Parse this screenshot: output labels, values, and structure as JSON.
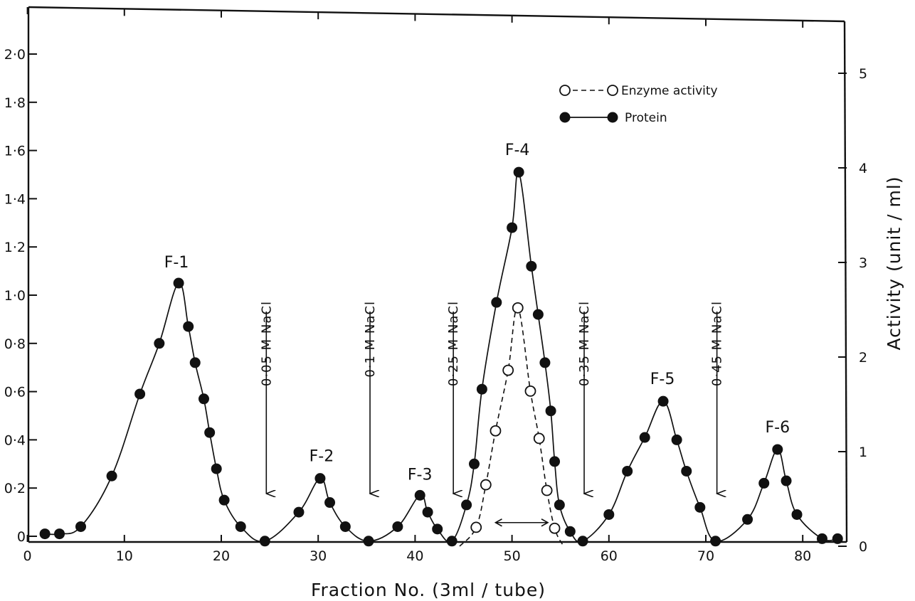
{
  "chart_data": {
    "type": "line",
    "xlabel": "Fraction No. (3ml / tube)",
    "ylabel_right": "Activity (unit / ml)",
    "xlim": [
      0,
      85
    ],
    "ylim_left": [
      0,
      2.2
    ],
    "ylim_right": [
      0,
      5.6
    ],
    "x_ticks": [
      0,
      10,
      20,
      30,
      40,
      50,
      60,
      70,
      80
    ],
    "y_left_ticks": [
      {
        "v": 0,
        "label": "0"
      },
      {
        "v": 0.2,
        "label": "0·2"
      },
      {
        "v": 0.4,
        "label": "0·4"
      },
      {
        "v": 0.6,
        "label": "0·6"
      },
      {
        "v": 0.8,
        "label": "0·8"
      },
      {
        "v": 1.0,
        "label": "1·0"
      },
      {
        "v": 1.2,
        "label": "1·2"
      },
      {
        "v": 1.4,
        "label": "1·4"
      },
      {
        "v": 1.6,
        "label": "1·6"
      },
      {
        "v": 1.8,
        "label": "1·8"
      },
      {
        "v": 2.0,
        "label": "2·0"
      }
    ],
    "y_right_ticks": [
      0,
      1,
      2,
      3,
      4,
      5
    ],
    "legend": {
      "position": "top-right",
      "entries": [
        {
          "label": "Enzyme activity",
          "style": "open circles, dashed line"
        },
        {
          "label": "Protein",
          "style": "filled circles, solid line"
        }
      ]
    },
    "series": [
      {
        "name": "Protein",
        "axis": "left",
        "points": [
          [
            1.8,
            0.01
          ],
          [
            3.3,
            0.01
          ],
          [
            5.5,
            0.04
          ],
          [
            8.7,
            0.25
          ],
          [
            11.6,
            0.59
          ],
          [
            13.6,
            0.8
          ],
          [
            15.6,
            1.05
          ],
          [
            16.6,
            0.87
          ],
          [
            17.3,
            0.72
          ],
          [
            18.2,
            0.57
          ],
          [
            18.8,
            0.43
          ],
          [
            19.5,
            0.28
          ],
          [
            20.3,
            0.15
          ],
          [
            22.0,
            0.04
          ],
          [
            24.5,
            -0.02
          ],
          [
            28.0,
            0.1
          ],
          [
            30.2,
            0.24
          ],
          [
            31.2,
            0.14
          ],
          [
            32.8,
            0.04
          ],
          [
            35.2,
            -0.02
          ],
          [
            38.2,
            0.04
          ],
          [
            40.5,
            0.17
          ],
          [
            41.3,
            0.1
          ],
          [
            42.3,
            0.03
          ],
          [
            43.8,
            -0.02
          ],
          [
            45.3,
            0.13
          ],
          [
            46.1,
            0.3
          ],
          [
            46.9,
            0.61
          ],
          [
            48.4,
            0.97
          ],
          [
            50.0,
            1.28
          ],
          [
            50.7,
            1.51
          ],
          [
            52.0,
            1.12
          ],
          [
            52.7,
            0.92
          ],
          [
            53.4,
            0.72
          ],
          [
            54.0,
            0.52
          ],
          [
            54.4,
            0.31
          ],
          [
            54.9,
            0.13
          ],
          [
            56.0,
            0.02
          ],
          [
            57.3,
            -0.02
          ],
          [
            60.0,
            0.09
          ],
          [
            61.9,
            0.27
          ],
          [
            63.7,
            0.41
          ],
          [
            65.6,
            0.56
          ],
          [
            67.0,
            0.4
          ],
          [
            68.0,
            0.27
          ],
          [
            69.4,
            0.12
          ],
          [
            71.0,
            -0.02
          ],
          [
            74.3,
            0.07
          ],
          [
            76.0,
            0.22
          ],
          [
            77.4,
            0.36
          ],
          [
            78.3,
            0.23
          ],
          [
            79.4,
            0.09
          ],
          [
            82.0,
            -0.01
          ],
          [
            83.6,
            -0.01
          ]
        ],
        "labeled_peaks": [
          {
            "label": "F-1",
            "x": 15.6,
            "y": 1.05
          },
          {
            "label": "F-2",
            "x": 30.2,
            "y": 0.24
          },
          {
            "label": "F-3",
            "x": 40.5,
            "y": 0.17
          },
          {
            "label": "F-4",
            "x": 50.7,
            "y": 1.51
          },
          {
            "label": "F-5",
            "x": 65.6,
            "y": 0.56
          },
          {
            "label": "F-6",
            "x": 77.4,
            "y": 0.36
          }
        ]
      },
      {
        "name": "Enzyme activity",
        "axis": "right",
        "points": [
          [
            46.3,
            0.2
          ],
          [
            47.3,
            0.65
          ],
          [
            48.3,
            1.22
          ],
          [
            49.6,
            1.86
          ],
          [
            50.6,
            2.52
          ],
          [
            51.9,
            1.64
          ],
          [
            52.8,
            1.14
          ],
          [
            53.6,
            0.59
          ],
          [
            54.4,
            0.19
          ]
        ]
      }
    ],
    "annotations": [
      {
        "type": "arrow",
        "label": "0·05 M NaCl",
        "x": 24.5
      },
      {
        "type": "arrow",
        "label": "0·1 M NaCl",
        "x": 35.2
      },
      {
        "type": "arrow",
        "label": "0·25 M NaCl",
        "x": 43.8
      },
      {
        "type": "arrow",
        "label": "0·35 M NaCl",
        "x": 57.3
      },
      {
        "type": "arrow",
        "label": "0·45 M NaCl",
        "x": 71.0
      },
      {
        "type": "double-arrow",
        "x_range": [
          48.3,
          53.7
        ],
        "y_right": 0.25
      }
    ]
  }
}
